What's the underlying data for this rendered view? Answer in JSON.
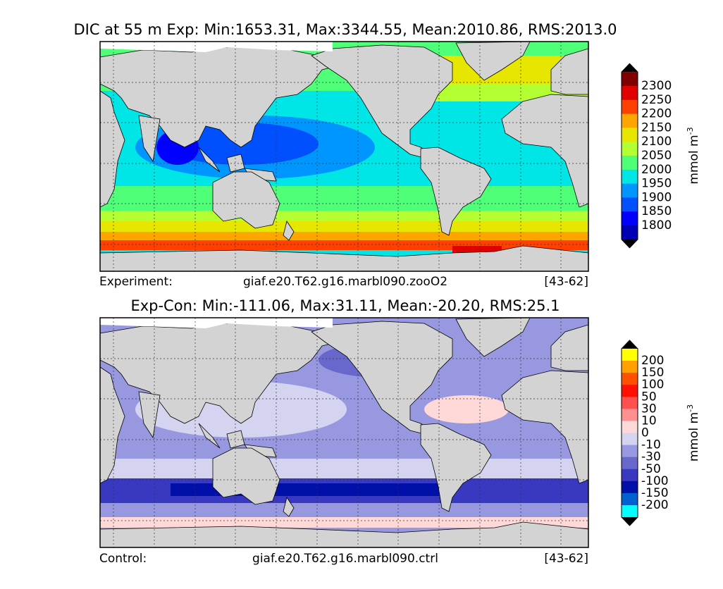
{
  "panels": [
    {
      "title": "DIC at 55 m Exp: Min:1653.31, Max:3344.55, Mean:2010.86, RMS:2013.0",
      "footer": {
        "label": "Experiment:",
        "case": "giaf.e20.T62.g16.marbl090.zooO2",
        "years": "[43-62]"
      },
      "colorbar": {
        "unit": "mmol m",
        "unit_exponent": "-3",
        "levels": [
          2300,
          2250,
          2200,
          2150,
          2100,
          2050,
          2000,
          1950,
          1900,
          1850,
          1800
        ],
        "colors": [
          "#800000",
          "#e00000",
          "#ff4000",
          "#ffa500",
          "#e6e600",
          "#b4ff32",
          "#50ff78",
          "#00e6e6",
          "#0096ff",
          "#0050ff",
          "#0000ff",
          "#0000b4"
        ],
        "extend_color": "#000000"
      }
    },
    {
      "title": "Exp-Con: Min:-111.06, Max:31.11, Mean:-20.20, RMS:25.1",
      "footer": {
        "label": "Control:",
        "case": "giaf.e20.T62.g16.marbl090.ctrl",
        "years": "[43-62]"
      },
      "colorbar": {
        "unit": "mmol m",
        "unit_exponent": "-3",
        "levels": [
          200,
          150,
          100,
          50,
          30,
          10,
          0,
          -10,
          -30,
          -50,
          -100,
          -150,
          -200
        ],
        "colors": [
          "#ffff00",
          "#ffa000",
          "#ff5000",
          "#ff1000",
          "#ff5050",
          "#ff9090",
          "#ffd8d8",
          "#d4d4f0",
          "#9898e0",
          "#6868cc",
          "#3838c0",
          "#0010a8",
          "#0060d0",
          "#00ffff"
        ],
        "extend_color": "#000000"
      }
    }
  ]
}
